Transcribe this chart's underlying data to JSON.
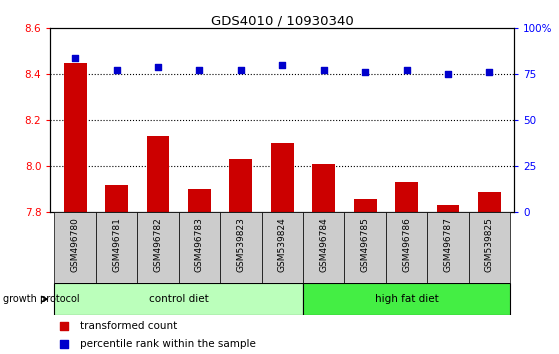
{
  "title": "GDS4010 / 10930340",
  "samples": [
    "GSM496780",
    "GSM496781",
    "GSM496782",
    "GSM496783",
    "GSM539823",
    "GSM539824",
    "GSM496784",
    "GSM496785",
    "GSM496786",
    "GSM496787",
    "GSM539825"
  ],
  "bar_values": [
    8.45,
    7.92,
    8.13,
    7.9,
    8.03,
    8.1,
    8.01,
    7.86,
    7.93,
    7.83,
    7.89
  ],
  "dot_values": [
    8.47,
    8.42,
    8.43,
    8.42,
    8.42,
    8.44,
    8.42,
    8.41,
    8.42,
    8.4,
    8.41
  ],
  "ylim_left": [
    7.8,
    8.6
  ],
  "yticks_left": [
    7.8,
    8.0,
    8.2,
    8.4,
    8.6
  ],
  "yticks_right": [
    0,
    25,
    50,
    75,
    100
  ],
  "bar_color": "#cc0000",
  "dot_color": "#0000cc",
  "control_diet_indices": [
    0,
    1,
    2,
    3,
    4,
    5
  ],
  "high_fat_diet_indices": [
    6,
    7,
    8,
    9,
    10
  ],
  "control_diet_label": "control diet",
  "high_fat_diet_label": "high fat diet",
  "growth_protocol_label": "growth protocol",
  "legend_bar_label": "transformed count",
  "legend_dot_label": "percentile rank within the sample",
  "control_diet_color": "#bbffbb",
  "high_fat_diet_color": "#44ee44",
  "tick_bg_color": "#cccccc",
  "bar_bottom": 7.8
}
